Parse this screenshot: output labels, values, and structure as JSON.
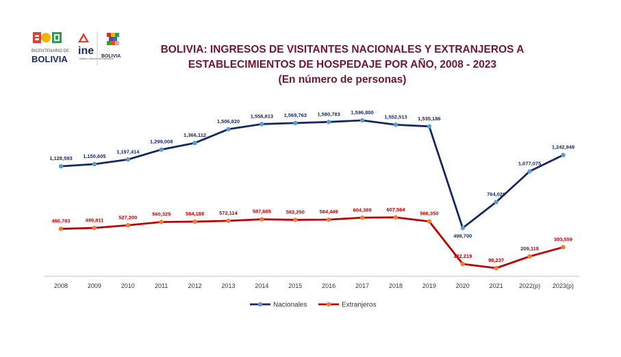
{
  "header": {
    "title_line1": "BOLIVIA: INGRESOS DE VISITANTES NACIONALES Y EXTRANJEROS A",
    "title_line2": "ESTABLECIMIENTOS DE HOSPEDAJE POR AÑO, 2008 - 2023",
    "subtitle": "(En número de personas)"
  },
  "logos": {
    "bicentenario_small": "BICENTENARIO DE",
    "bicentenario_big": "BOLIVIA",
    "ine_big": "ine",
    "ine_small": "Instituto Nacional de Estadística",
    "estado": "BOLIVIA"
  },
  "colors": {
    "nacionales_line": "#14285f",
    "nacionales_marker": "#5b9bd5",
    "extranjeros_line": "#c00000",
    "extranjeros_marker": "#ed7d31",
    "title": "#6e1633"
  },
  "chart_data": {
    "type": "line",
    "categories": [
      "2008",
      "2009",
      "2010",
      "2011",
      "2012",
      "2013",
      "2014",
      "2015",
      "2016",
      "2017",
      "2018",
      "2019",
      "2020",
      "2021",
      "2022(p)",
      "2023(p)"
    ],
    "series": [
      {
        "name": "Nacionales",
        "values": [
          1128593,
          1150605,
          1197414,
          1299008,
          1366112,
          1506820,
          1558813,
          1569763,
          1580783,
          1596800,
          1552513,
          1535186,
          498700,
          764020,
          1077075,
          1242948
        ],
        "labels": [
          "1,128,593",
          "1,150,605",
          "1,197,414",
          "1,299,008",
          "1,366,112",
          "1,506,820",
          "1,558,813",
          "1,569,763",
          "1,580,783",
          "1,596,800",
          "1,552,513",
          "1,535,186",
          "498,700",
          "764,020",
          "1,077,075",
          "1,242,948"
        ]
      },
      {
        "name": "Extranjeros",
        "values": [
          490783,
          499811,
          527200,
          560325,
          564188,
          572114,
          587665,
          582250,
          584449,
          604389,
          607564,
          566350,
          132219,
          90237,
          209118,
          303559
        ],
        "labels": [
          "490,783",
          "499,811",
          "527,200",
          "560,325",
          "564,188",
          "572,114",
          "587,665",
          "582,250",
          "584,449",
          "604,389",
          "607,564",
          "566,350",
          "132,219",
          "90,237",
          "209,118",
          "303,559"
        ]
      }
    ],
    "ylim": [
      0,
      1800000
    ],
    "grid": false,
    "legend": "bottom"
  }
}
